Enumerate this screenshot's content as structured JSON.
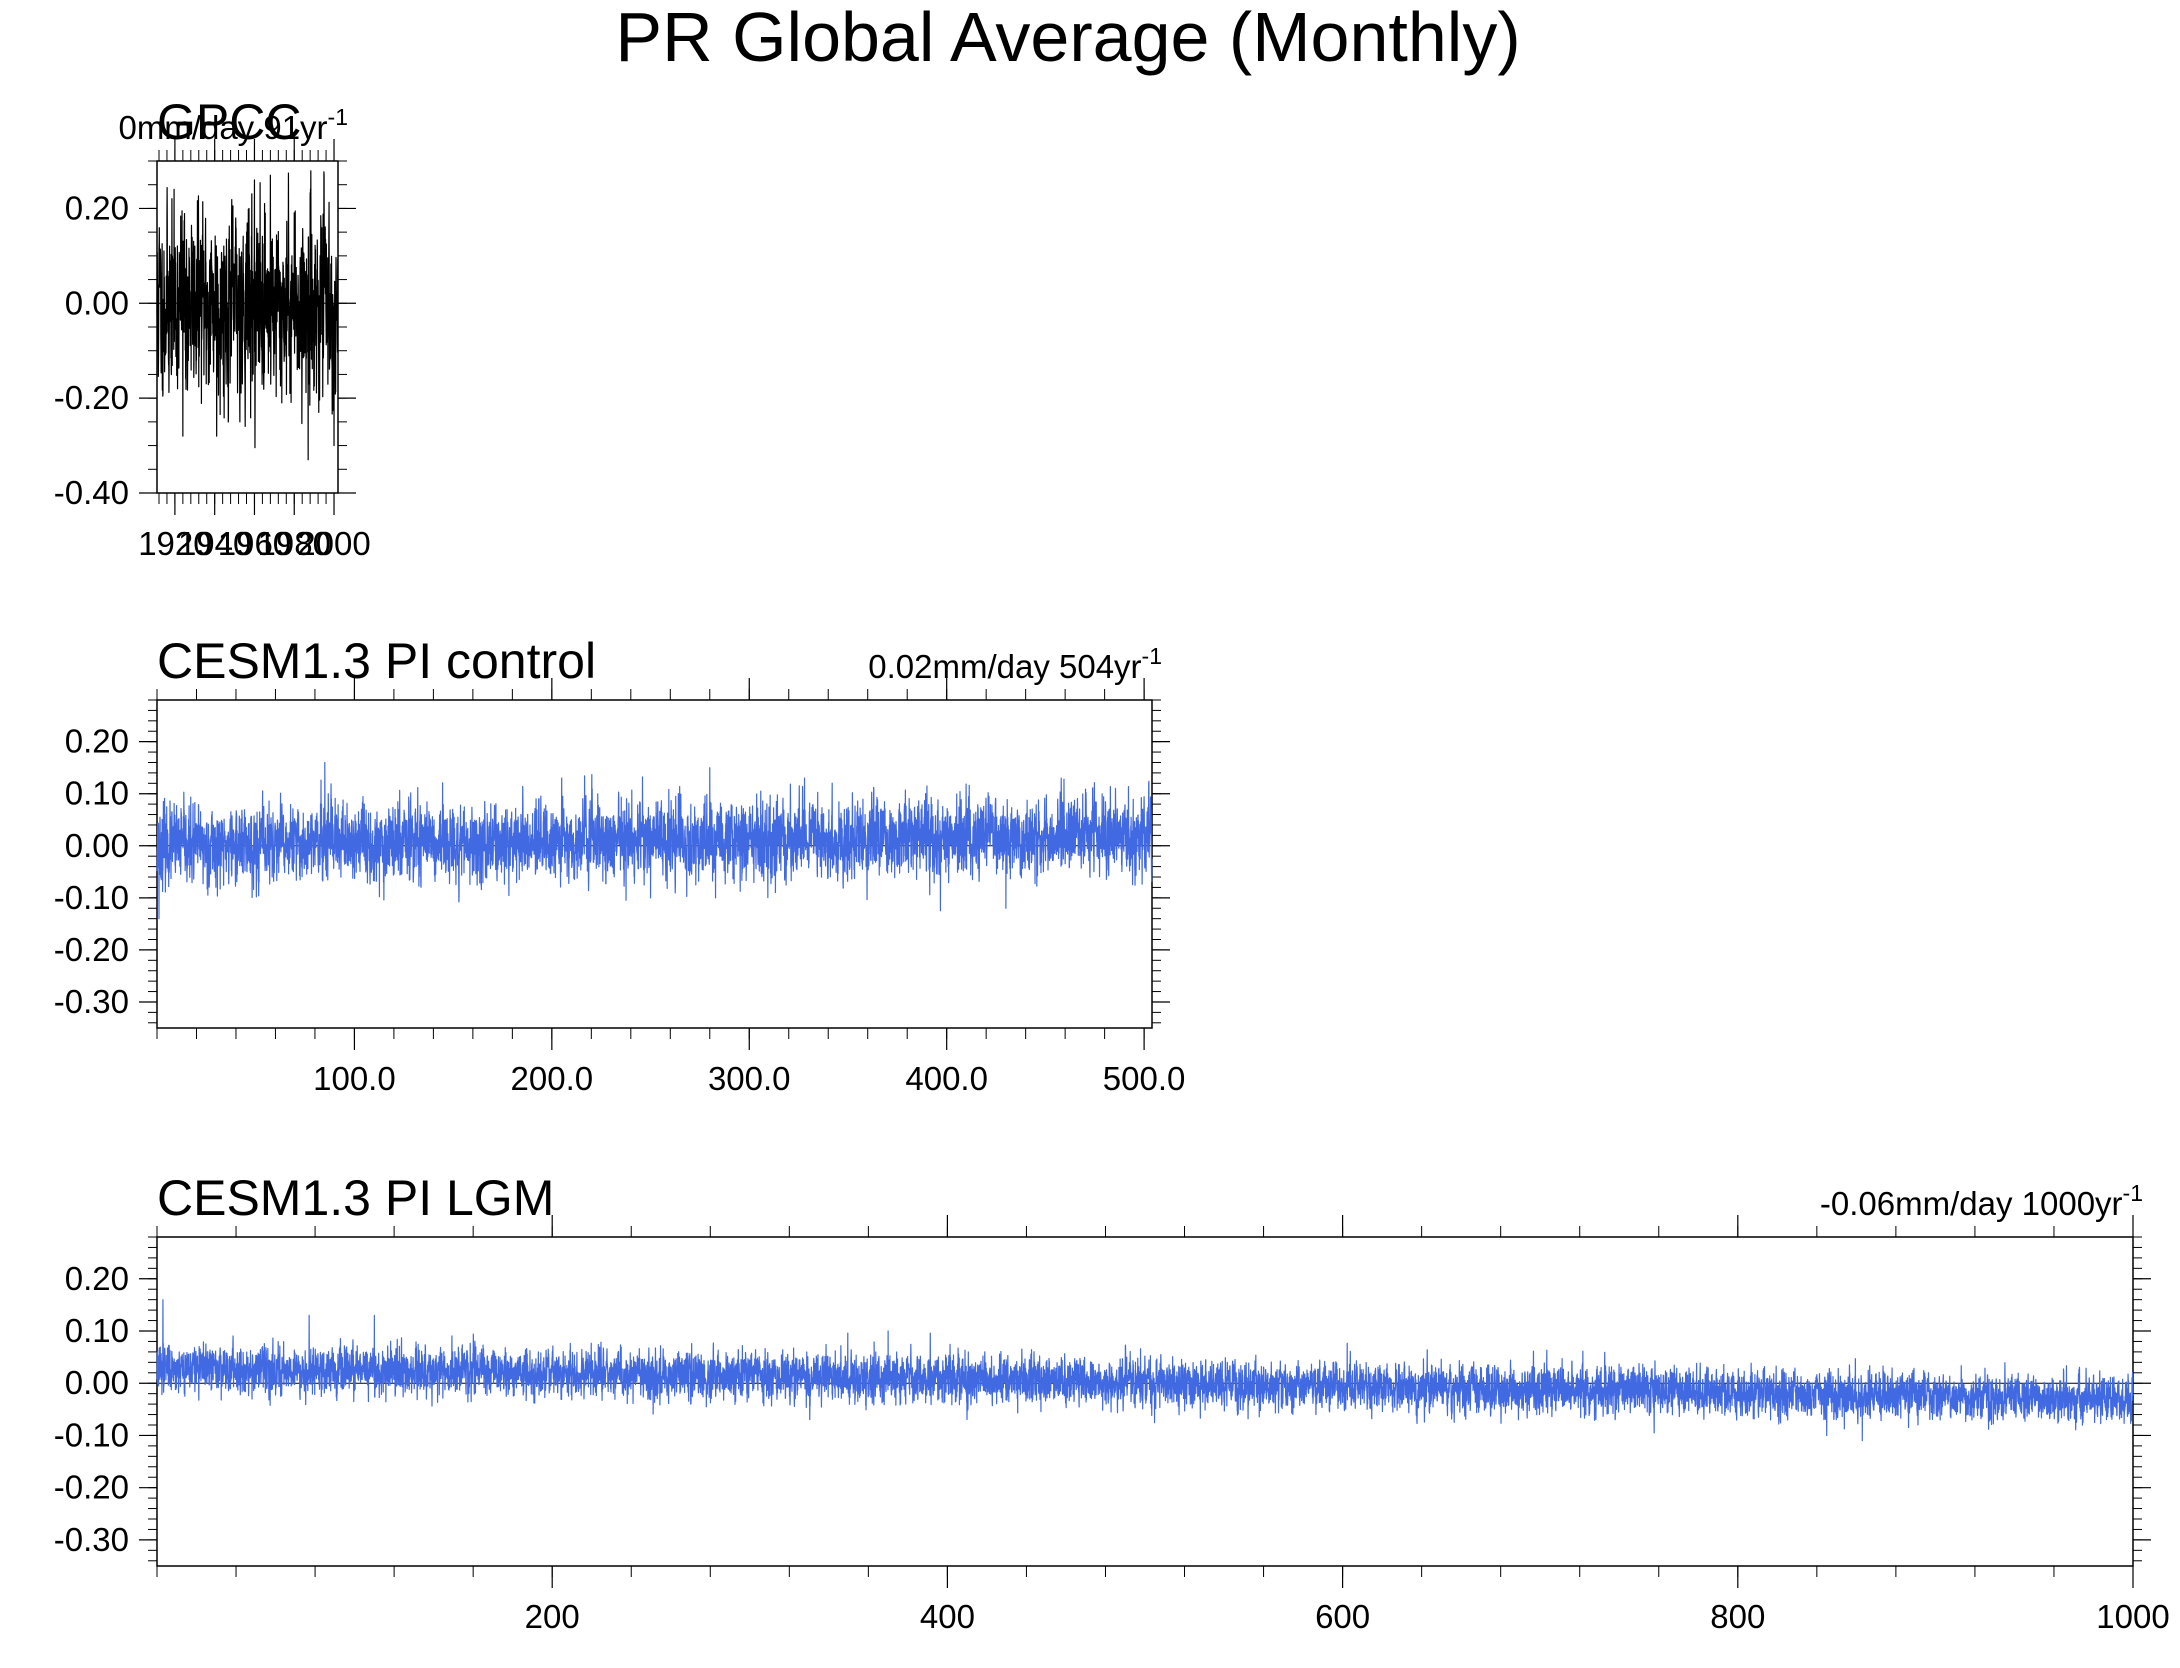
{
  "page": {
    "title": "PR Global Average (Monthly)"
  },
  "colors": {
    "observed": "#000000",
    "model": "#4169e1",
    "axis": "#000000"
  },
  "chart_data": [
    {
      "type": "line",
      "title": "GPCC",
      "trend_value": "0mm/day 91yr",
      "trend_exp": "-1",
      "x": {
        "range": [
          1911,
          2002
        ],
        "ticks": [
          1920,
          1940,
          1960,
          1980,
          2000
        ],
        "labels": [
          "1920",
          "1940",
          "1960",
          "1980",
          "2000"
        ]
      },
      "y": {
        "range": [
          -0.4,
          0.3
        ],
        "ticks": [
          -0.4,
          -0.2,
          0.0,
          0.2
        ],
        "labels": [
          "-0.40",
          "-0.20",
          "0.00",
          "0.20"
        ]
      },
      "series": [
        {
          "color": "#000000",
          "months": 1092,
          "mean": 0.0,
          "trend_per_year": 0.0,
          "noise_sd": 0.09,
          "peaks": [
            [
              1960,
              0.26
            ],
            [
              1968,
              0.27
            ],
            [
              1995,
              0.27
            ],
            [
              1987,
              -0.33
            ],
            [
              1924,
              -0.28
            ],
            [
              1941,
              -0.28
            ],
            [
              2000,
              -0.3
            ]
          ]
        }
      ]
    },
    {
      "type": "line",
      "title": "CESM1.3 PI control",
      "trend_value": "0.02mm/day 504yr",
      "trend_exp": "-1",
      "x": {
        "range": [
          0,
          504
        ],
        "ticks": [
          100,
          200,
          300,
          400,
          500
        ],
        "labels": [
          "100.0",
          "200.0",
          "300.0",
          "400.0",
          "500.0"
        ]
      },
      "y": {
        "range": [
          -0.35,
          0.28
        ],
        "ticks": [
          -0.3,
          -0.2,
          -0.1,
          0.0,
          0.1,
          0.2
        ],
        "labels": [
          "-0.30",
          "-0.20",
          "-0.10",
          "0.00",
          "0.10",
          "0.20"
        ]
      },
      "series": [
        {
          "color": "#4169e1",
          "months": 6048,
          "mean": 0.0,
          "trend_per_year": 4e-05,
          "noise_sd": 0.033,
          "peaks": [
            [
              85,
              0.16
            ],
            [
              280,
              0.15
            ],
            [
              205,
              0.13
            ],
            [
              328,
              0.13
            ],
            [
              458,
              0.13
            ],
            [
              1,
              -0.14
            ],
            [
              430,
              -0.12
            ],
            [
              250,
              -0.1
            ]
          ]
        }
      ]
    },
    {
      "type": "line",
      "title": "CESM1.3 PI LGM",
      "trend_value": "-0.06mm/day 1000yr",
      "trend_exp": "-1",
      "x": {
        "range": [
          0,
          1000
        ],
        "ticks": [
          200,
          400,
          600,
          800,
          1000
        ],
        "labels": [
          "200",
          "400",
          "600",
          "800",
          "1000"
        ]
      },
      "y": {
        "range": [
          -0.35,
          0.28
        ],
        "ticks": [
          -0.3,
          -0.2,
          -0.1,
          0.0,
          0.1,
          0.2
        ],
        "labels": [
          "-0.30",
          "-0.20",
          "-0.10",
          "0.00",
          "0.10",
          "0.20"
        ]
      },
      "series": [
        {
          "color": "#4169e1",
          "months": 12000,
          "mean": 0.03,
          "trend_per_year": -6e-05,
          "noise_sd": 0.02,
          "peaks": [
            [
              3,
              0.16
            ],
            [
              77,
              0.13
            ],
            [
              110,
              0.13
            ],
            [
              370,
              0.1
            ],
            [
              863,
              -0.11
            ],
            [
              845,
              -0.1
            ]
          ]
        }
      ]
    }
  ]
}
